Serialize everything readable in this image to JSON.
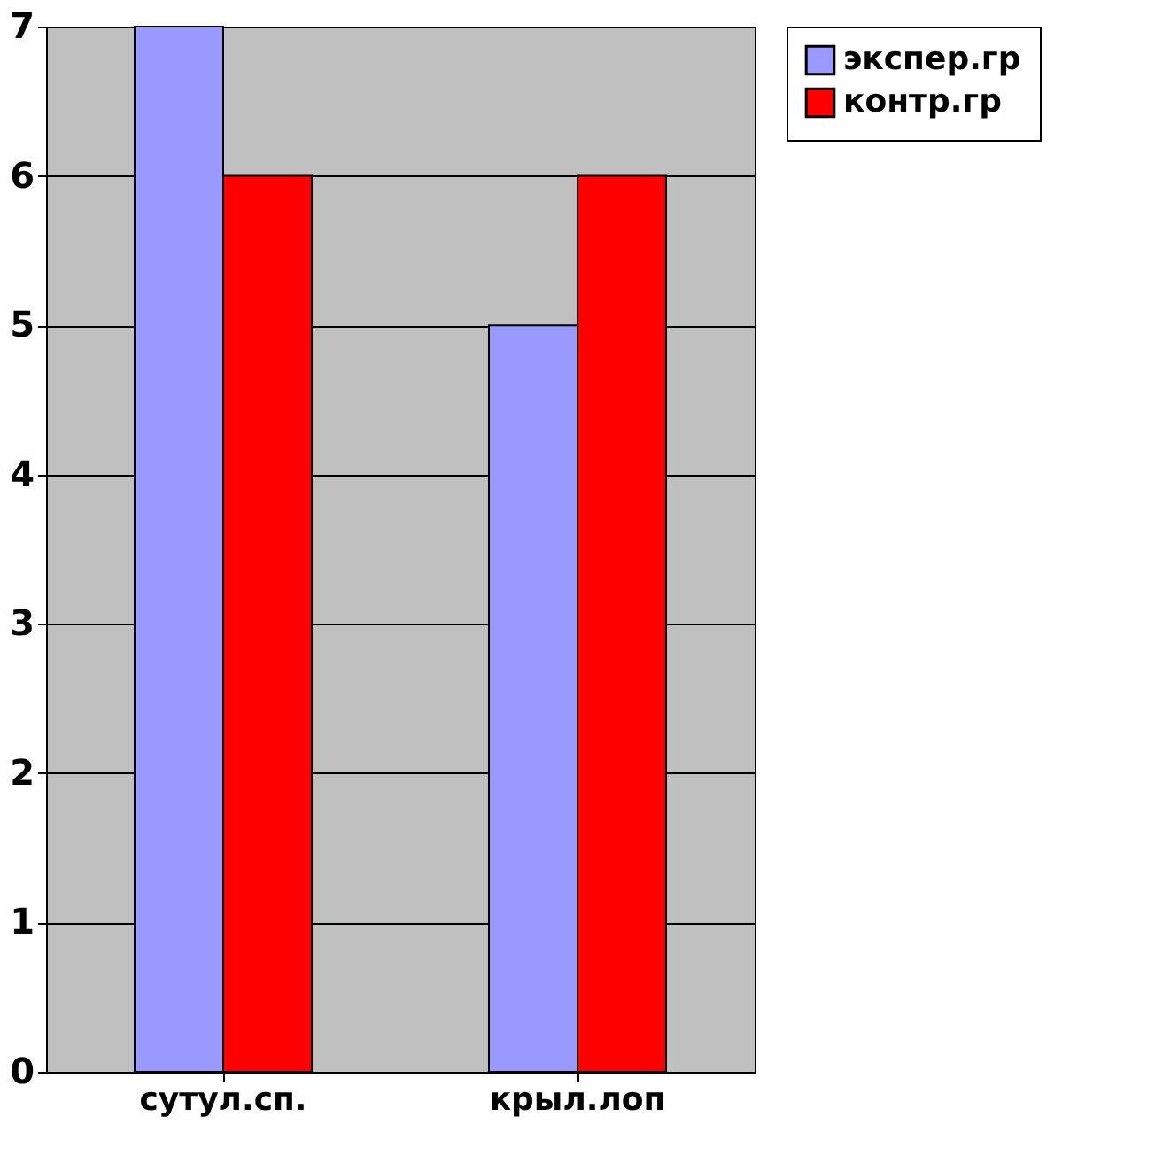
{
  "chart_data": {
    "type": "bar",
    "categories": [
      "сутул.сп.",
      "крыл.лоп"
    ],
    "series": [
      {
        "name": "экспер.гр",
        "color": "#9999ff",
        "values": [
          7,
          5
        ]
      },
      {
        "name": "контр.гр",
        "color": "#ff0000",
        "values": [
          6,
          6
        ]
      }
    ],
    "ylim": [
      0,
      7
    ],
    "yticks": [
      0,
      1,
      2,
      3,
      4,
      5,
      6,
      7
    ],
    "grid": "y",
    "legend": "right"
  }
}
